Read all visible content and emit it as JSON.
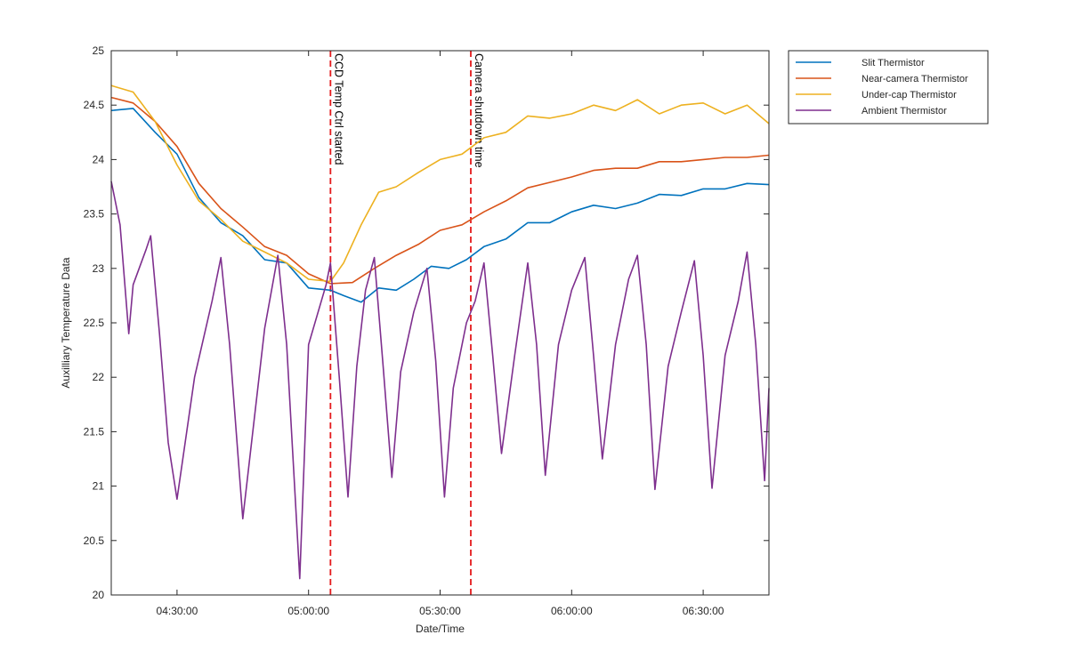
{
  "chart_data": {
    "type": "line",
    "title": "",
    "xlabel": "Date/Time",
    "ylabel": "Auxilliary Temperature Data",
    "xlim": [
      "04:15:00",
      "04:18:00",
      "06:45:00"
    ],
    "ylim": [
      20,
      25
    ],
    "x_ticks": [
      "04:30:00",
      "05:00:00",
      "05:30:00",
      "06:00:00",
      "06:30:00"
    ],
    "y_ticks": [
      "20",
      "20.5",
      "21",
      "21.5",
      "22",
      "22.5",
      "23",
      "23.5",
      "24",
      "24.5",
      "25"
    ],
    "legend_position": "outside-top-right",
    "grid": false,
    "vertical_lines": [
      {
        "label": "CCD Temp Ctrl started",
        "x": "05:05:00",
        "color": "#e41a1c"
      },
      {
        "label": "Camera shutdown time",
        "x": "05:37:00",
        "color": "#e41a1c"
      }
    ],
    "series": [
      {
        "name": "Slit Thermistor",
        "color": "#0072bd",
        "points": [
          [
            "04:15:00",
            24.45
          ],
          [
            "04:20:00",
            24.47
          ],
          [
            "04:25:00",
            24.25
          ],
          [
            "04:30:00",
            24.05
          ],
          [
            "04:35:00",
            23.65
          ],
          [
            "04:40:00",
            23.42
          ],
          [
            "04:45:00",
            23.3
          ],
          [
            "04:50:00",
            23.08
          ],
          [
            "04:55:00",
            23.05
          ],
          [
            "05:00:00",
            22.82
          ],
          [
            "05:05:00",
            22.8
          ],
          [
            "05:08:00",
            22.75
          ],
          [
            "05:12:00",
            22.69
          ],
          [
            "05:16:00",
            22.82
          ],
          [
            "05:20:00",
            22.8
          ],
          [
            "05:24:00",
            22.9
          ],
          [
            "05:28:00",
            23.02
          ],
          [
            "05:32:00",
            23.0
          ],
          [
            "05:36:00",
            23.08
          ],
          [
            "05:40:00",
            23.2
          ],
          [
            "05:45:00",
            23.27
          ],
          [
            "05:50:00",
            23.42
          ],
          [
            "05:55:00",
            23.42
          ],
          [
            "06:00:00",
            23.52
          ],
          [
            "06:05:00",
            23.58
          ],
          [
            "06:10:00",
            23.55
          ],
          [
            "06:15:00",
            23.6
          ],
          [
            "06:20:00",
            23.68
          ],
          [
            "06:25:00",
            23.67
          ],
          [
            "06:30:00",
            23.73
          ],
          [
            "06:35:00",
            23.73
          ],
          [
            "06:40:00",
            23.78
          ],
          [
            "06:45:00",
            23.77
          ]
        ]
      },
      {
        "name": "Near-camera Thermistor",
        "color": "#d95319",
        "points": [
          [
            "04:15:00",
            24.57
          ],
          [
            "04:20:00",
            24.52
          ],
          [
            "04:25:00",
            24.35
          ],
          [
            "04:30:00",
            24.12
          ],
          [
            "04:35:00",
            23.78
          ],
          [
            "04:40:00",
            23.55
          ],
          [
            "04:45:00",
            23.38
          ],
          [
            "04:50:00",
            23.2
          ],
          [
            "04:55:00",
            23.12
          ],
          [
            "05:00:00",
            22.95
          ],
          [
            "05:05:00",
            22.86
          ],
          [
            "05:10:00",
            22.87
          ],
          [
            "05:15:00",
            23.0
          ],
          [
            "05:20:00",
            23.12
          ],
          [
            "05:25:00",
            23.22
          ],
          [
            "05:30:00",
            23.35
          ],
          [
            "05:35:00",
            23.4
          ],
          [
            "05:40:00",
            23.52
          ],
          [
            "05:45:00",
            23.62
          ],
          [
            "05:50:00",
            23.74
          ],
          [
            "05:55:00",
            23.79
          ],
          [
            "06:00:00",
            23.84
          ],
          [
            "06:05:00",
            23.9
          ],
          [
            "06:10:00",
            23.92
          ],
          [
            "06:15:00",
            23.92
          ],
          [
            "06:20:00",
            23.98
          ],
          [
            "06:25:00",
            23.98
          ],
          [
            "06:30:00",
            24.0
          ],
          [
            "06:35:00",
            24.02
          ],
          [
            "06:40:00",
            24.02
          ],
          [
            "06:45:00",
            24.04
          ]
        ]
      },
      {
        "name": "Under-cap Thermistor",
        "color": "#edb120",
        "points": [
          [
            "04:15:00",
            24.68
          ],
          [
            "04:20:00",
            24.62
          ],
          [
            "04:25:00",
            24.35
          ],
          [
            "04:30:00",
            23.95
          ],
          [
            "04:35:00",
            23.62
          ],
          [
            "04:40:00",
            23.45
          ],
          [
            "04:45:00",
            23.25
          ],
          [
            "04:50:00",
            23.15
          ],
          [
            "04:55:00",
            23.05
          ],
          [
            "05:00:00",
            22.9
          ],
          [
            "05:05:00",
            22.88
          ],
          [
            "05:08:00",
            23.05
          ],
          [
            "05:12:00",
            23.4
          ],
          [
            "05:16:00",
            23.7
          ],
          [
            "05:20:00",
            23.75
          ],
          [
            "05:25:00",
            23.88
          ],
          [
            "05:30:00",
            24.0
          ],
          [
            "05:35:00",
            24.05
          ],
          [
            "05:40:00",
            24.2
          ],
          [
            "05:45:00",
            24.25
          ],
          [
            "05:50:00",
            24.4
          ],
          [
            "05:55:00",
            24.38
          ],
          [
            "06:00:00",
            24.42
          ],
          [
            "06:05:00",
            24.5
          ],
          [
            "06:10:00",
            24.45
          ],
          [
            "06:15:00",
            24.55
          ],
          [
            "06:20:00",
            24.42
          ],
          [
            "06:25:00",
            24.5
          ],
          [
            "06:30:00",
            24.52
          ],
          [
            "06:35:00",
            24.42
          ],
          [
            "06:40:00",
            24.5
          ],
          [
            "06:45:00",
            24.33
          ]
        ]
      },
      {
        "name": "Ambient Thermistor",
        "color": "#7e2f8e",
        "points": [
          [
            "04:15:00",
            23.8
          ],
          [
            "04:17:00",
            23.4
          ],
          [
            "04:19:00",
            22.4
          ],
          [
            "04:20:00",
            22.85
          ],
          [
            "04:23:00",
            23.18
          ],
          [
            "04:24:00",
            23.3
          ],
          [
            "04:26:00",
            22.4
          ],
          [
            "04:28:00",
            21.4
          ],
          [
            "04:30:00",
            20.88
          ],
          [
            "04:34:00",
            22.0
          ],
          [
            "04:38:00",
            22.7
          ],
          [
            "04:40:00",
            23.1
          ],
          [
            "04:42:00",
            22.3
          ],
          [
            "04:45:00",
            20.7
          ],
          [
            "04:50:00",
            22.45
          ],
          [
            "04:53:00",
            23.12
          ],
          [
            "04:55:00",
            22.3
          ],
          [
            "04:58:00",
            20.15
          ],
          [
            "05:00:00",
            22.3
          ],
          [
            "05:04:00",
            22.85
          ],
          [
            "05:05:00",
            23.05
          ],
          [
            "05:07:00",
            22.0
          ],
          [
            "05:09:00",
            20.9
          ],
          [
            "05:11:00",
            22.1
          ],
          [
            "05:13:00",
            22.8
          ],
          [
            "05:15:00",
            23.1
          ],
          [
            "05:17:00",
            22.1
          ],
          [
            "05:19:00",
            21.08
          ],
          [
            "05:21:00",
            22.05
          ],
          [
            "05:24:00",
            22.6
          ],
          [
            "05:27:00",
            23.0
          ],
          [
            "05:29:00",
            22.15
          ],
          [
            "05:31:00",
            20.9
          ],
          [
            "05:33:00",
            21.9
          ],
          [
            "05:36:00",
            22.5
          ],
          [
            "05:38:00",
            22.7
          ],
          [
            "05:40:00",
            23.05
          ],
          [
            "05:42:00",
            22.2
          ],
          [
            "05:44:00",
            21.3
          ],
          [
            "05:47:00",
            22.2
          ],
          [
            "05:50:00",
            23.05
          ],
          [
            "05:52:00",
            22.3
          ],
          [
            "05:54:00",
            21.1
          ],
          [
            "05:57:00",
            22.3
          ],
          [
            "06:00:00",
            22.8
          ],
          [
            "06:03:00",
            23.1
          ],
          [
            "06:05:00",
            22.2
          ],
          [
            "06:07:00",
            21.25
          ],
          [
            "06:10:00",
            22.3
          ],
          [
            "06:13:00",
            22.9
          ],
          [
            "06:15:00",
            23.12
          ],
          [
            "06:17:00",
            22.3
          ],
          [
            "06:19:00",
            20.97
          ],
          [
            "06:22:00",
            22.1
          ],
          [
            "06:25:00",
            22.6
          ],
          [
            "06:28:00",
            23.07
          ],
          [
            "06:30:00",
            22.2
          ],
          [
            "06:32:00",
            20.98
          ],
          [
            "06:35:00",
            22.2
          ],
          [
            "06:38:00",
            22.7
          ],
          [
            "06:40:00",
            23.15
          ],
          [
            "06:42:00",
            22.3
          ],
          [
            "06:44:00",
            21.05
          ],
          [
            "06:45:00",
            21.9
          ]
        ]
      }
    ]
  }
}
